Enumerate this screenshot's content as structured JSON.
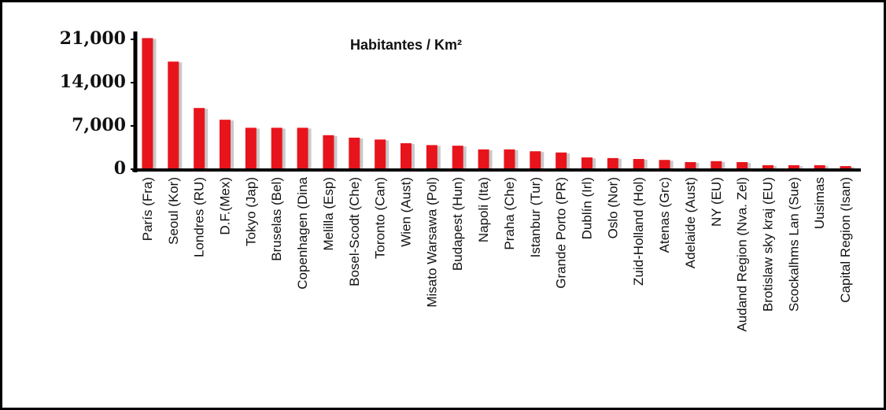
{
  "chart_data": {
    "type": "bar",
    "title": "Habitantes / Km²",
    "categories": [
      "París (Fra)",
      "Seoul (Kor)",
      "Londres (RU)",
      "D.F.(Mex)",
      "Tokyo (Jap)",
      "Bruselas (Bel)",
      "Copenhagen (Dina",
      "Melilla (Esp)",
      "Bosel-Scodt (Che)",
      "Toronto (Can)",
      "Wien (Aust)",
      "Misato Warsawa (Pol)",
      "Budapest (Hun)",
      "Napoli (Ita)",
      "Praha (Che)",
      "Istanbur (Tur)",
      "Grande Porto (PR)",
      "Dublín (Irl)",
      "Oslo (Nor)",
      "Zuid-Holland (Hol)",
      "Atenas (Grc)",
      "Adelaide (Aust)",
      "NY (EU)",
      "Audand Region (Nva. Zel)",
      "Brotislaw sky kraj (EU)",
      "Scockalhms Lan (Sue)",
      "Uusimas",
      "Capital Region (Isan)"
    ],
    "values": [
      21200,
      17400,
      9900,
      8000,
      6700,
      6700,
      6700,
      5500,
      5100,
      4800,
      4200,
      3900,
      3800,
      3200,
      3200,
      2900,
      2700,
      1900,
      1800,
      1650,
      1500,
      1150,
      1300,
      1150,
      650,
      650,
      650,
      500
    ],
    "color": "#e8141c",
    "ylim": [
      0,
      21000
    ],
    "yticks": [
      0,
      {
        "value": 7000,
        "label": "7,000"
      },
      {
        "value": 14000,
        "label": "14,000"
      },
      {
        "value": 21000,
        "label": "21,000"
      }
    ],
    "grid": false
  }
}
